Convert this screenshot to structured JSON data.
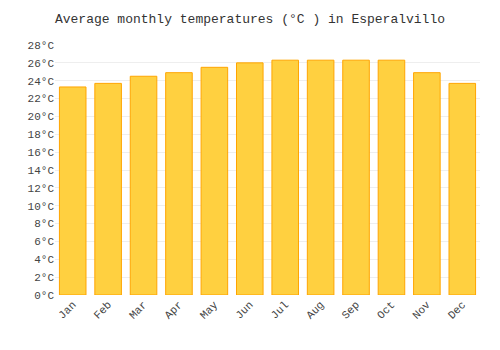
{
  "chart_data": {
    "type": "bar",
    "title": "Average monthly temperatures (°C ) in Esperalvillo",
    "categories": [
      "Jan",
      "Feb",
      "Mar",
      "Apr",
      "May",
      "Jun",
      "Jul",
      "Aug",
      "Sep",
      "Oct",
      "Nov",
      "Dec"
    ],
    "values": [
      23.3,
      23.7,
      24.5,
      24.9,
      25.5,
      26.0,
      26.3,
      26.3,
      26.3,
      26.3,
      24.9,
      23.7
    ],
    "color": "#FFD040",
    "ylim": [
      0,
      28
    ],
    "yticks": [
      {
        "value": 0,
        "label": "0°C"
      },
      {
        "value": 2,
        "label": "2°C"
      },
      {
        "value": 4,
        "label": "4°C"
      },
      {
        "value": 6,
        "label": "6°C"
      },
      {
        "value": 8,
        "label": "8°C"
      },
      {
        "value": 10,
        "label": "10°C"
      },
      {
        "value": 12,
        "label": "12°C"
      },
      {
        "value": 14,
        "label": "14°C"
      },
      {
        "value": 16,
        "label": "16°C"
      },
      {
        "value": 18,
        "label": "18°C"
      },
      {
        "value": 20,
        "label": "20°C"
      },
      {
        "value": 22,
        "label": "22°C"
      },
      {
        "value": 24,
        "label": "24°C"
      },
      {
        "value": 26,
        "label": "26°C"
      },
      {
        "value": 28,
        "label": "28°C"
      }
    ],
    "grid": true
  }
}
